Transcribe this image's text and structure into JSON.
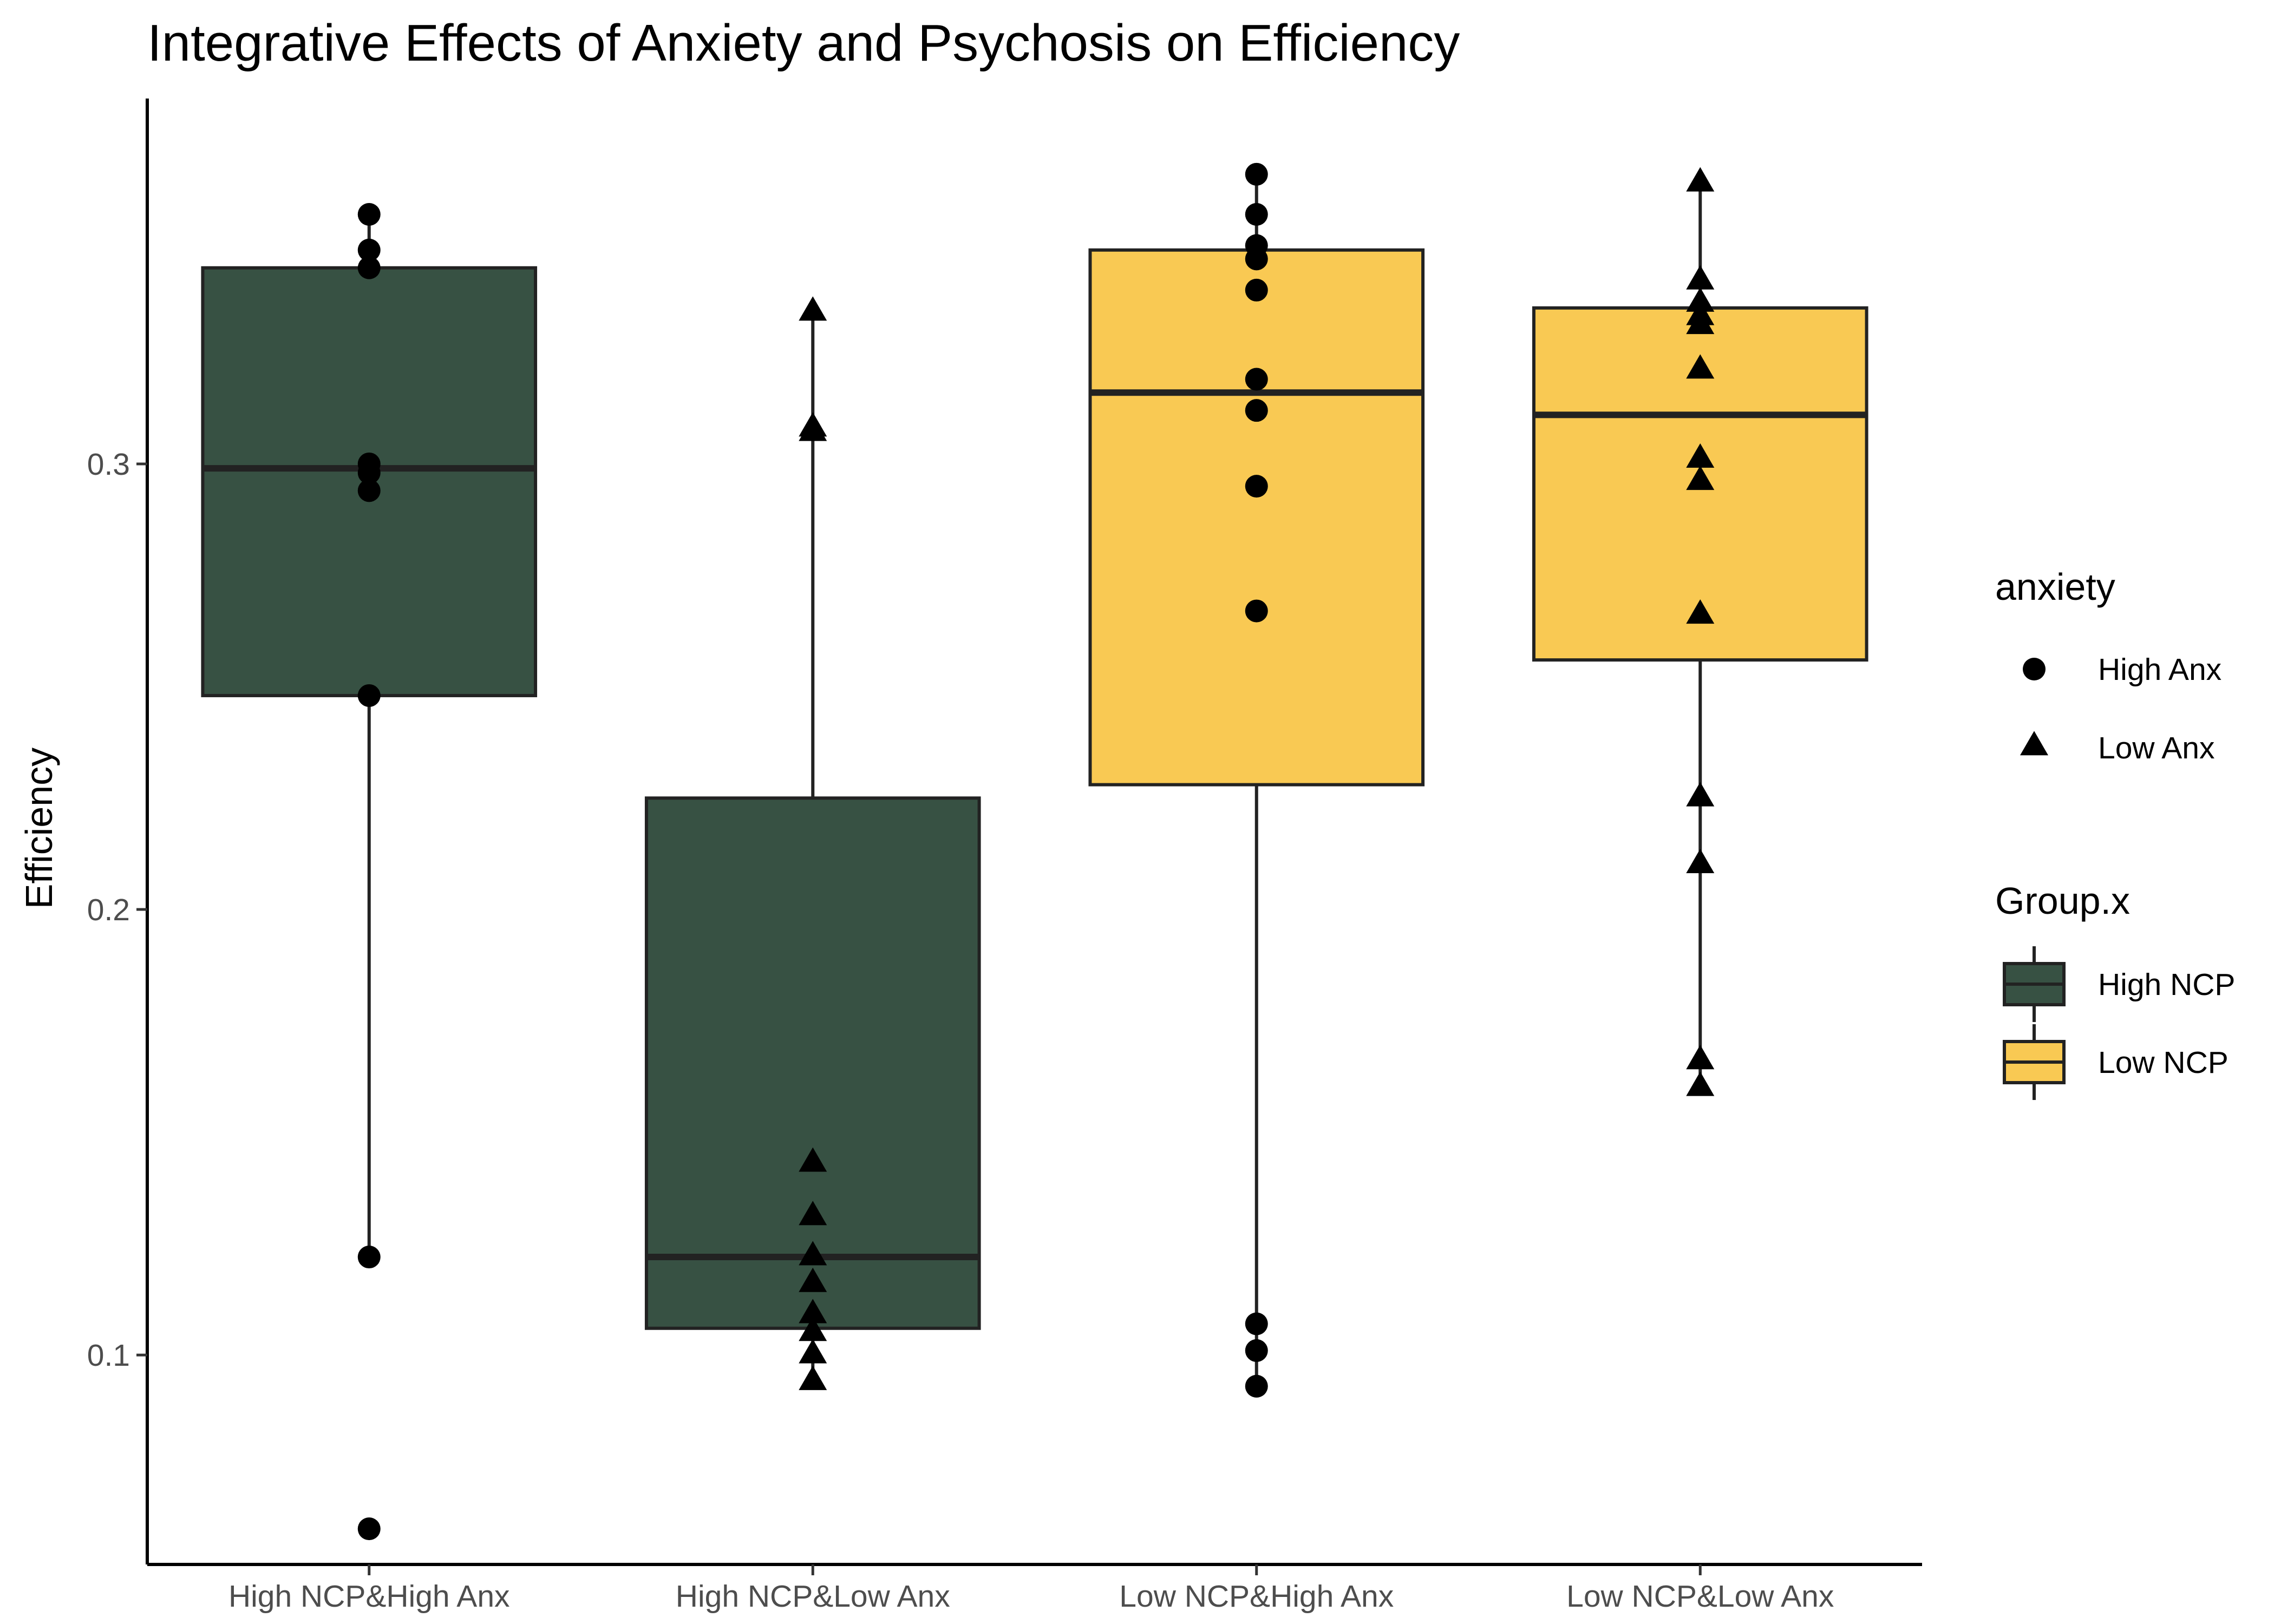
{
  "chart_data": {
    "type": "boxplot",
    "title": "Integrative Effects of Anxiety and Psychosis on Efficiency",
    "xlabel": "",
    "ylabel": "Efficiency",
    "ylim": [
      0.053,
      0.382
    ],
    "yticks": [
      0.1,
      0.2,
      0.3
    ],
    "ytick_labels": [
      "0.1",
      "0.2",
      "0.3"
    ],
    "grid": false,
    "legend_position": "right",
    "categories": [
      "High NCP&High Anx",
      "High NCP&Low Anx",
      "Low NCP&High Anx",
      "Low NCP&Low Anx"
    ],
    "boxes": [
      {
        "category": "High NCP&High Anx",
        "group": "High NCP",
        "whisker_low": 0.122,
        "q1": 0.248,
        "median": 0.299,
        "q3": 0.344,
        "whisker_high": 0.356
      },
      {
        "category": "High NCP&Low Anx",
        "group": "High NCP",
        "whisker_low": 0.094,
        "q1": 0.106,
        "median": 0.122,
        "q3": 0.225,
        "whisker_high": 0.334
      },
      {
        "category": "Low NCP&High Anx",
        "group": "Low NCP",
        "whisker_low": 0.093,
        "q1": 0.228,
        "median": 0.316,
        "q3": 0.348,
        "whisker_high": 0.365
      },
      {
        "category": "Low NCP&Low Anx",
        "group": "Low NCP",
        "whisker_low": 0.16,
        "q1": 0.256,
        "median": 0.311,
        "q3": 0.335,
        "whisker_high": 0.363
      }
    ],
    "points": [
      {
        "category": "High NCP&High Anx",
        "anxiety": "High Anx",
        "values": [
          0.356,
          0.348,
          0.344,
          0.3,
          0.298,
          0.294,
          0.248,
          0.122,
          0.061
        ]
      },
      {
        "category": "High NCP&Low Anx",
        "anxiety": "Low Anx",
        "values": [
          0.334,
          0.308,
          0.307,
          0.143,
          0.131,
          0.122,
          0.116,
          0.109,
          0.105,
          0.1,
          0.094
        ]
      },
      {
        "category": "Low NCP&High Anx",
        "anxiety": "High Anx",
        "values": [
          0.365,
          0.356,
          0.349,
          0.346,
          0.339,
          0.319,
          0.312,
          0.295,
          0.267,
          0.107,
          0.101,
          0.093
        ]
      },
      {
        "category": "Low NCP&Low Anx",
        "anxiety": "Low Anx",
        "values": [
          0.363,
          0.341,
          0.336,
          0.333,
          0.331,
          0.321,
          0.301,
          0.296,
          0.266,
          0.225,
          0.21,
          0.166,
          0.16
        ]
      }
    ],
    "legends": [
      {
        "title": "anxiety",
        "items": [
          {
            "label": "High Anx",
            "shape": "circle"
          },
          {
            "label": "Low Anx",
            "shape": "triangle"
          }
        ]
      },
      {
        "title": "Group.x",
        "items": [
          {
            "label": "High NCP",
            "color": "#375143"
          },
          {
            "label": "Low NCP",
            "color": "#F9C953"
          }
        ]
      }
    ],
    "colors": {
      "High NCP": "#375143",
      "Low NCP": "#F9C953",
      "outline": "#222222",
      "points": "#000000"
    }
  }
}
